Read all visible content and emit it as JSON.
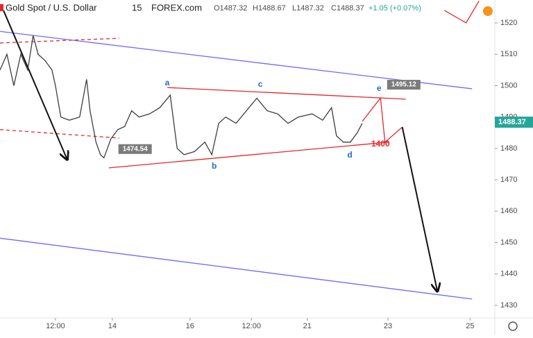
{
  "chart_data": {
    "type": "line",
    "title": "Gold Spot / U.S. Dollar",
    "interval": "15",
    "source": "FOREX.com",
    "ohlc": [
      "O1487.32",
      "H1488.67",
      "L1487.32",
      "C1488.37"
    ],
    "change": "+1.05 (+0.07%)",
    "x": [
      0,
      1.4,
      2.8,
      4.2,
      5.6,
      6.7,
      7.7,
      9.1,
      10.5,
      11.2,
      12.3,
      14.0,
      16.1,
      17.5,
      18.2,
      19.4,
      20.3,
      21.0,
      22.4,
      23.8,
      25.2,
      26.6,
      28.1,
      30.2,
      32.3,
      34.4,
      35.8,
      37.2,
      39.3,
      41.4,
      42.8,
      44.2,
      45.6,
      47.7,
      49.8,
      51.9,
      54.0,
      56.1,
      58.2,
      60.3,
      63.1,
      65.2,
      67.0,
      68.0,
      69.4,
      70.8,
      72.2,
      73.2
    ],
    "values": [
      1505,
      1510,
      1500,
      1510,
      1505,
      1516,
      1510,
      1508,
      1505,
      1500,
      1490,
      1489,
      1490,
      1502,
      1492,
      1482,
      1478,
      1477,
      1483,
      1486,
      1487,
      1492,
      1490,
      1491,
      1493,
      1497,
      1480,
      1478,
      1479,
      1482,
      1478,
      1488,
      1490,
      1488,
      1492,
      1496,
      1492,
      1491,
      1488,
      1490,
      1491,
      1489,
      1493,
      1484,
      1482,
      1482,
      1485,
      1488
    ],
    "color": "#3d3d3d",
    "xlim": [
      0,
      100
    ],
    "ylim": [
      1426,
      1527.3
    ],
    "xticks": [
      {
        "value": 11.2,
        "label": "12:00"
      },
      {
        "value": 22.7,
        "label": "14"
      },
      {
        "value": 38.4,
        "label": "16"
      },
      {
        "value": 50.8,
        "label": "12:00"
      },
      {
        "value": 62.1,
        "label": "21"
      },
      {
        "value": 78.4,
        "label": "23"
      },
      {
        "value": 95.0,
        "label": "25"
      }
    ],
    "yticks": [
      1430,
      1440,
      1450,
      1460,
      1470,
      1480,
      1490,
      1500,
      1510,
      1520
    ],
    "last_price": 1488.37,
    "lines": [
      {
        "color": "#6b6bff",
        "dash": false,
        "arrow": false,
        "x": [
          0,
          95.4
        ],
        "y": [
          1517.3,
          1499.0
        ]
      },
      {
        "color": "#6b6bff",
        "dash": false,
        "arrow": false,
        "x": [
          0,
          95.4
        ],
        "y": [
          1451.4,
          1432.0
        ]
      },
      {
        "color": "#e8262a",
        "dash": false,
        "arrow": false,
        "x": [
          33.8,
          82.0
        ],
        "y": [
          1499.4,
          1495.7
        ]
      },
      {
        "color": "#e8262a",
        "dash": false,
        "arrow": false,
        "x": [
          22.0,
          78.5
        ],
        "y": [
          1473.8,
          1482.0
        ]
      },
      {
        "color": "#e8262a",
        "dash": true,
        "arrow": false,
        "x": [
          0,
          24.1
        ],
        "y": [
          1513.6,
          1515.1
        ]
      },
      {
        "color": "#e8262a",
        "dash": true,
        "arrow": false,
        "x": [
          0,
          24.1
        ],
        "y": [
          1486.0,
          1483.3
        ]
      },
      {
        "color": "#e8262a",
        "dash": false,
        "arrow": false,
        "x": [
          73.2,
          76.9,
          77.8,
          81.3
        ],
        "y": [
          1488.6,
          1496.1,
          1482.0,
          1486.8
        ]
      },
      {
        "color": "#e8262a",
        "dash": false,
        "arrow": false,
        "x": [
          89.8,
          94.2,
          96.8
        ],
        "y": [
          1524.0,
          1520.0,
          1527.0
        ]
      },
      {
        "color": "#111111",
        "dash": false,
        "arrow": true,
        "x": [
          0.7,
          13.6
        ],
        "y": [
          1524.0,
          1476.4
        ]
      },
      {
        "color": "#111111",
        "dash": false,
        "arrow": true,
        "x": [
          81.3,
          88.4
        ],
        "y": [
          1486.8,
          1434.4
        ]
      }
    ],
    "labels": [
      {
        "text": "a",
        "x": 33.8,
        "y": 1500.8,
        "color": "#1e6fbf"
      },
      {
        "text": "b",
        "x": 43.3,
        "y": 1474.2,
        "color": "#1e6fbf"
      },
      {
        "text": "c",
        "x": 52.6,
        "y": 1500.3,
        "color": "#1e6fbf"
      },
      {
        "text": "d",
        "x": 70.7,
        "y": 1477.8,
        "color": "#1e6fbf"
      },
      {
        "text": "e",
        "x": 76.6,
        "y": 1499.0,
        "color": "#1e6fbf"
      },
      {
        "text": "1400",
        "x": 76.9,
        "y": 1481.3,
        "color": "#e8262a"
      }
    ],
    "tags": [
      {
        "text": "1474.54",
        "x": 27.3,
        "y": 1479.8
      },
      {
        "text": "1495.12",
        "x": 81.6,
        "y": 1500.3
      }
    ]
  }
}
